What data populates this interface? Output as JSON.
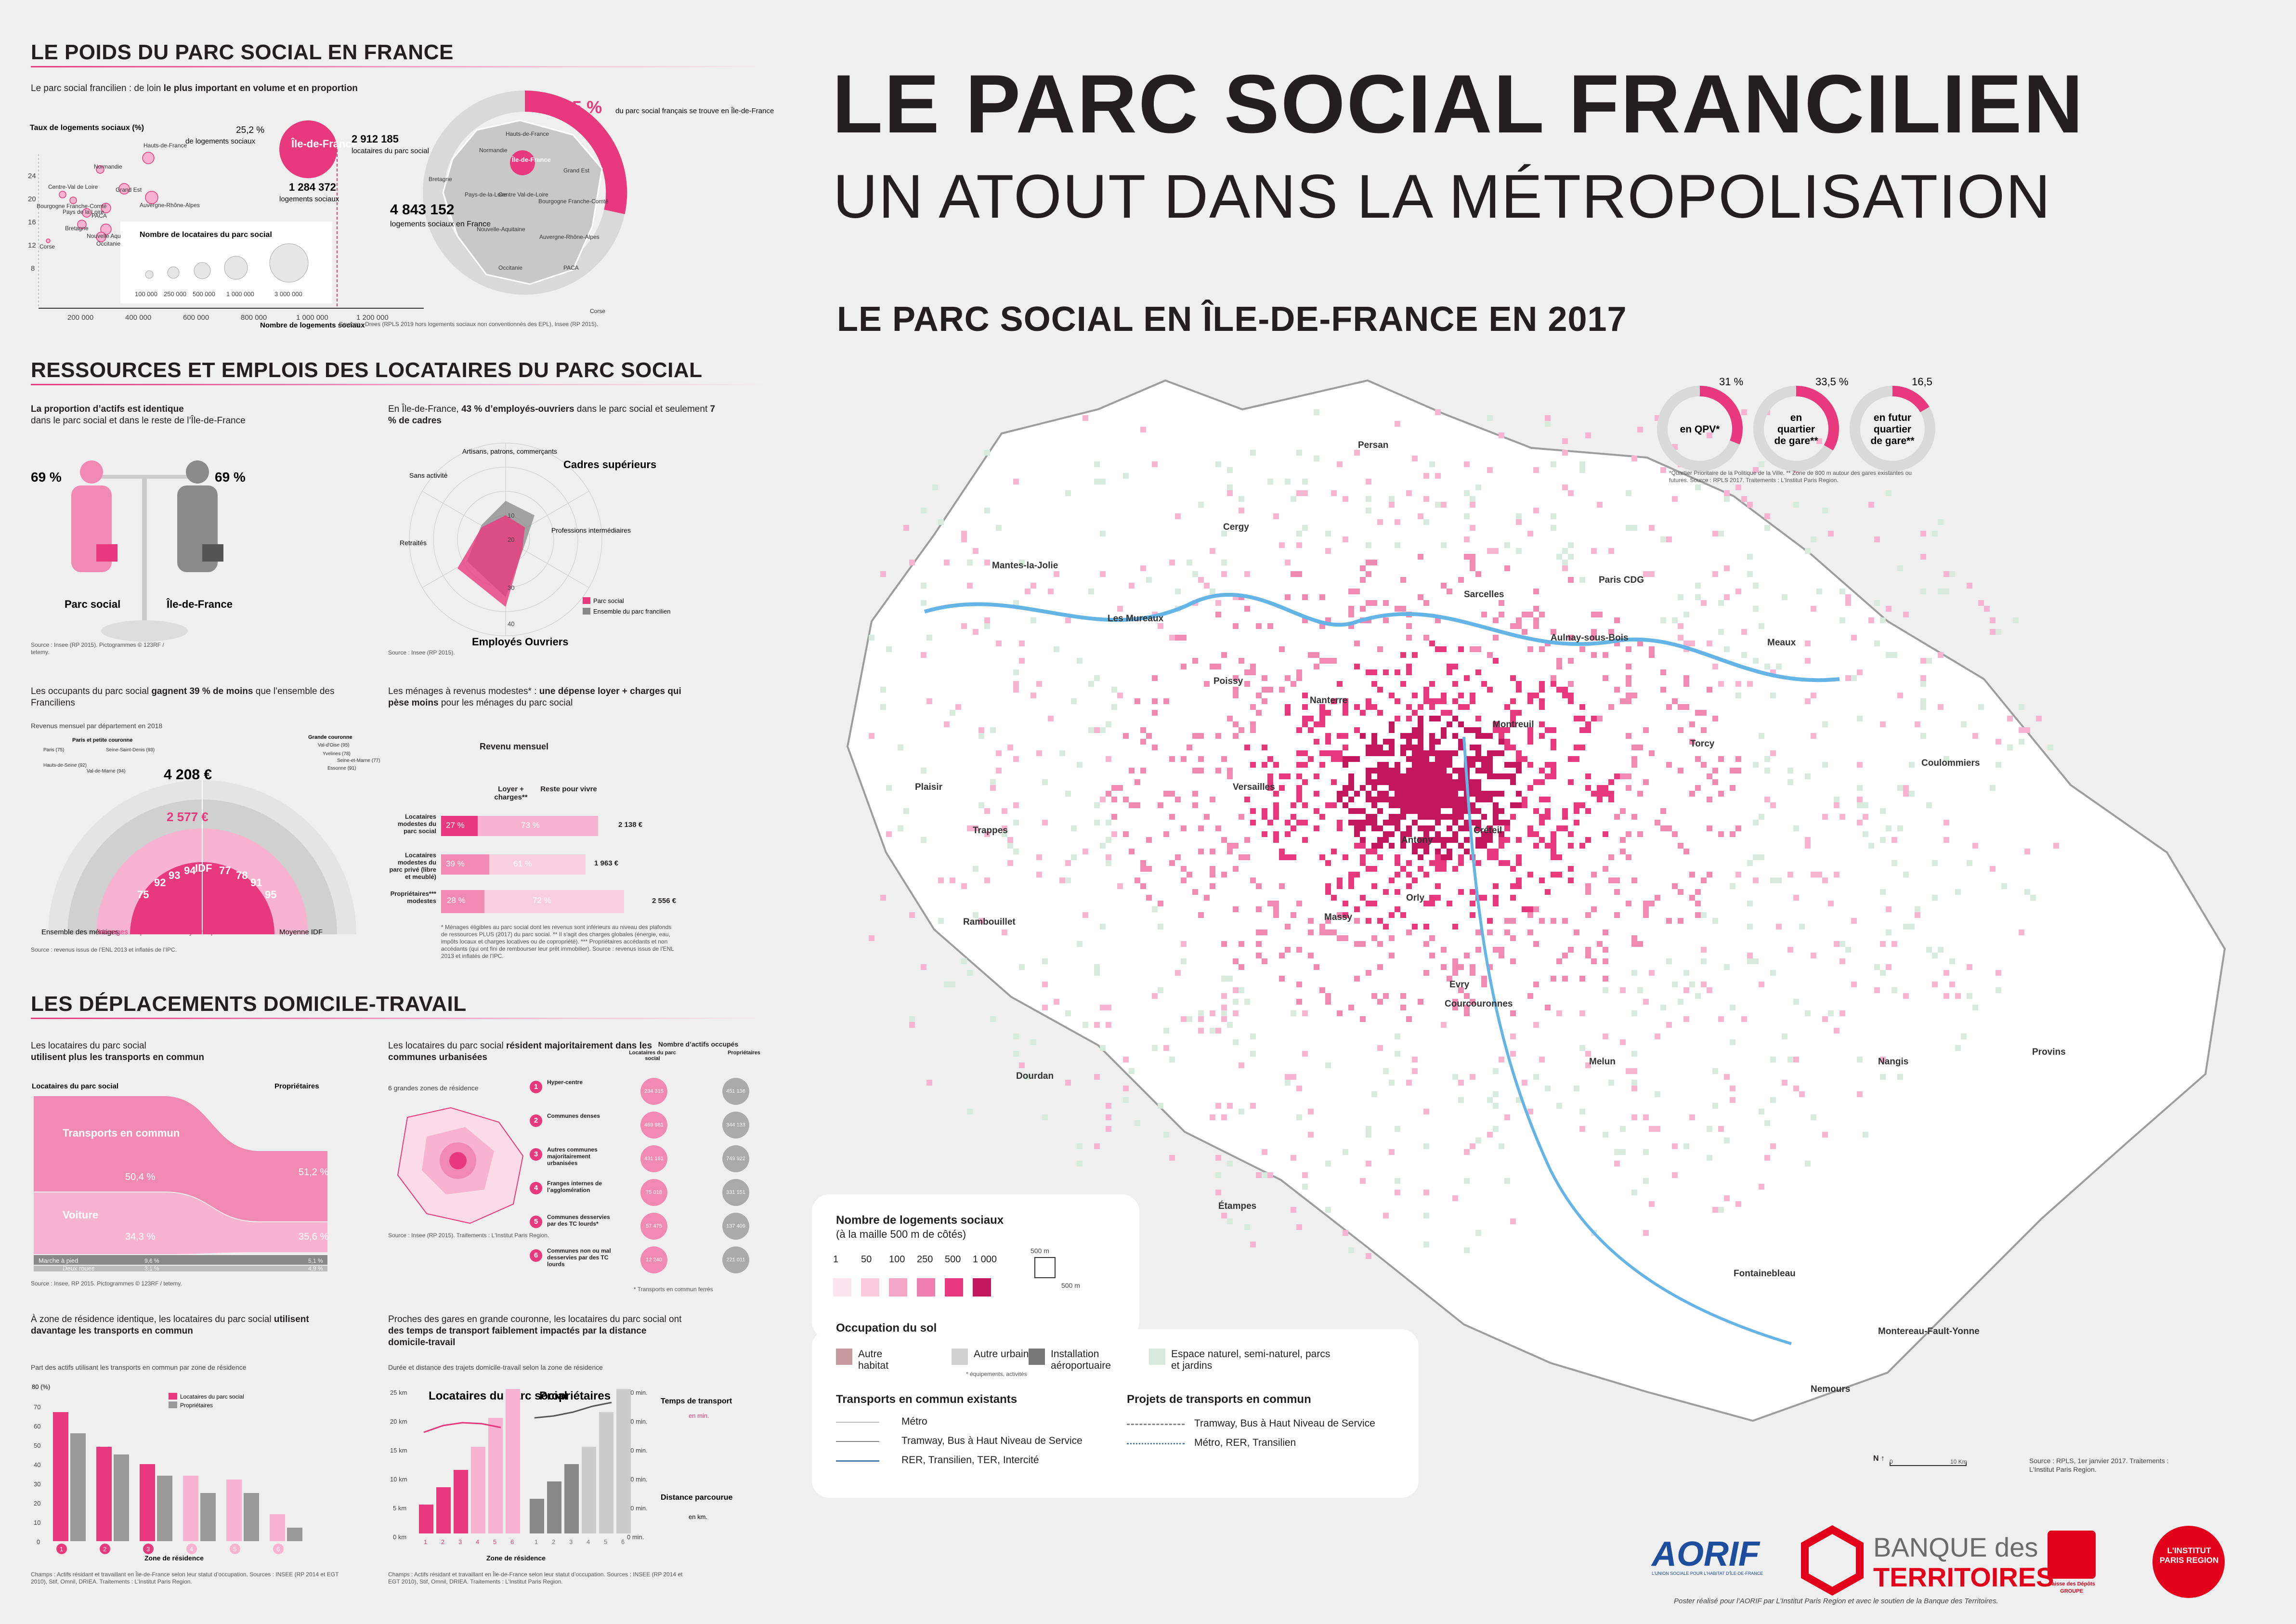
{
  "header": {
    "title": "LE PARC SOCIAL FRANCILIEN",
    "subtitle": "UN ATOUT DANS LA MÉTROPOLISATION",
    "map_title": "LE PARC SOCIAL EN ÎLE-DE-FRANCE EN 2017"
  },
  "section1": {
    "title": "LE POIDS DU PARC SOCIAL EN FRANCE",
    "intro_pre": "Le parc social francilien : de loin ",
    "intro_bold": "le plus important en volume et en proportion",
    "ylabel": "Taux de logements sociaux (%)",
    "xlabel": "Nombre de logements sociaux",
    "yticks": [
      "24",
      "20",
      "16",
      "12",
      "8"
    ],
    "xticks": [
      "200 000",
      "400 000",
      "600 000",
      "800 000",
      "1 000 000",
      "1 200 000"
    ],
    "pct_idf": "25,2 %",
    "pct_idf_label": "de logements sociaux",
    "idf_badge": "Île-de-France",
    "count_idf": "2 912 185",
    "count_idf_label": "locataires du parc social",
    "count_logements": "1 284 372",
    "count_logements_label": "logements sociaux",
    "bubble_legend_title": "Nombre de locataires du parc social",
    "bubble_legend_ticks": [
      "100 000",
      "250 000",
      "500 000",
      "1 000 000",
      "3 000 000"
    ],
    "regions": [
      "Hauts-de-France",
      "Normandie",
      "Grand Est",
      "Centre-Val de Loire",
      "Bourgogne Franche-Comté",
      "Auvergne-Rhône-Alpes",
      "Pays de la Loire",
      "PACA",
      "Bretagne",
      "Nouvelle Aquitaine",
      "Occitanie",
      "Corse"
    ],
    "map_pct": "26,5 %",
    "map_pct_label": "du parc social français se trouve en Île-de-France",
    "map_total": "4 843 152",
    "map_total_label": "logements sociaux en France",
    "map_regions": [
      "Hauts-de-France",
      "Normandie",
      "Bretagne",
      "Pays-de-la-Loire",
      "Centre Val-de-Loire",
      "Grand Est",
      "Bourgogne Franche-Comté",
      "Nouvelle-Aquitaine",
      "Auvergne-Rhône-Alpes",
      "Occitanie",
      "PACA",
      "Corse",
      "Île-de-France"
    ],
    "source": "Sources : Drees (RPLS 2019 hors logements sociaux non conventionnés des EPL), Insee (RP 2015)."
  },
  "section2": {
    "title": "RESSOURCES ET EMPLOIS DES LOCATAIRES DU PARC SOCIAL",
    "actifs_bold": "La proportion d’actifs est identique",
    "actifs_text": "dans le parc social et dans le reste de l’Île-de-France",
    "pct_left": "69 %",
    "pct_right": "69 %",
    "label_left": "Parc social",
    "label_right": "Île-de-France",
    "source1": "Source : Insee (RP 2015). Pictogrammes © 123RF / tetemy.",
    "csp_pre": "En Île-de-France, ",
    "csp_bold1": "43 % d’employés-ouvriers",
    "csp_mid": " dans le parc social et seulement ",
    "csp_bold2": "7 % de cadres",
    "radar_labels": [
      "Artisans, patrons, commerçants",
      "Cadres supérieurs",
      "Professions intermédiaires",
      "Employés Ouvriers",
      "Retraités",
      "Sans activité"
    ],
    "radar_ticks": [
      "10",
      "20",
      "30",
      "40"
    ],
    "radar_legend": [
      "Parc social",
      "Ensemble du parc francilien"
    ],
    "source2": "Source : Insee (RP 2015).",
    "revenu_pre": "Les occupants du parc social ",
    "revenu_bold": "gagnent 39 % de moins",
    "revenu_post": " que l’ensemble des Franciliens",
    "revenu_sub": "Revenus mensuel par département en 2018",
    "revenu_max": "4 208 €",
    "revenu_mid": "2 577 €",
    "paris_label": "Paris et petite couronne",
    "gc_label": "Grande couronne",
    "dept_labels": [
      "Paris (75)",
      "Seine-Saint-Denis (93)",
      "Hauts-de-Seine (92)",
      "Val-de-Marne (94)",
      "Val-d'Oise (95)",
      "Yvelines (78)",
      "Seine-et-Marne (77)",
      "Essonne (91)"
    ],
    "fan_codes": [
      "75",
      "92",
      "93",
      "94",
      "IDF",
      "77",
      "78",
      "91",
      "95"
    ],
    "fan_legend": [
      "Ensemble des ménages",
      "Ménages du parc social",
      "Moyenne parc social IDF",
      "Moyenne IDF"
    ],
    "source3": "Source : revenus issus de l’ENL 2013 et inflatés de l’IPC.",
    "menages_pre": "Les ménages à revenus modestes* : ",
    "menages_bold": "une dépense loyer + charges qui pèse moins",
    "menages_post": " pour les ménages du parc social",
    "revenu_mensuel": "Revenu mensuel",
    "col_loyer": "Loyer + charges**",
    "col_reste": "Reste pour vivre",
    "rows": [
      {
        "label": "Locataires modestes du parc social",
        "loyer": "27 %",
        "reste": "73 %",
        "total": "2 138 €"
      },
      {
        "label": "Locataires modestes du parc privé (libre et meublé)",
        "loyer": "39 %",
        "reste": "61 %",
        "total": "1 963 €"
      },
      {
        "label": "Propriétaires*** modestes",
        "loyer": "28 %",
        "reste": "72 %",
        "total": "2 556 €"
      }
    ],
    "notes": "* Ménages éligibles au parc social dont les revenus sont inférieurs au niveau des plafonds de ressources PLUS (2017) du parc social. ** Il s'agit des charges globales (énergie, eau, impôts locaux et charges locatives ou de copropriété). *** Propriétaires accédants et non accédants (qui ont fini de rembourser leur prêt immobilier). Source : revenus issus de l'ENL 2013 et inflatés de l'IPC."
  },
  "section3": {
    "title": "LES DÉPLACEMENTS DOMICILE-TRAVAIL",
    "tc_text": "Les locataires du parc social",
    "tc_bold": "utilisent plus les transports en commun",
    "col_left": "Locataires du parc social",
    "col_right": "Propriétaires",
    "mode_tc": "Transports en commun",
    "mode_voiture": "Voiture",
    "mode_marche": "Marche à pied",
    "mode_deux": "Deux roues",
    "vals_left": [
      "50,4 %",
      "34,3 %",
      "9,6 %",
      "3,1 %"
    ],
    "vals_right": [
      "51,2 %",
      "35,6 %",
      "5,1 %",
      "4,9 %"
    ],
    "source1": "Source : Insee, RP 2015. Pictogrammes © 123RF / tetemy.",
    "zones_pre": "Les locataires du parc social ",
    "zones_bold": "résident majoritairement dans les communes urbanisées",
    "zones_sub": "6 grandes zones de résidence",
    "zones_col_title": "Nombre d’actifs occupés",
    "zones_col_left": "Locataires du parc social",
    "zones_col_right": "Propriétaires",
    "zones": [
      {
        "n": "1",
        "label": "Hyper-centre",
        "a": "234 315",
        "b": "451 136"
      },
      {
        "n": "2",
        "label": "Communes denses",
        "a": "469 981",
        "b": "344 133"
      },
      {
        "n": "3",
        "label": "Autres communes majoritairement urbanisées",
        "a": "431 161",
        "b": "749 922"
      },
      {
        "n": "4",
        "label": "Franges internes de l’agglomération",
        "a": "75 018",
        "b": "331 151"
      },
      {
        "n": "5",
        "label": "Communes desservies par des TC lourds*",
        "a": "57 475",
        "b": "137 409"
      },
      {
        "n": "6",
        "label": "Communes non ou mal desservies par des TC lourds",
        "a": "12 240",
        "b": "221 011"
      }
    ],
    "zones_note": "* Transports en commun ferrés",
    "source2": "Source : Insee (RP 2015). Traitements : L'Institut Paris Region.",
    "bar_pre": "À zone de résidence identique, les locataires du parc social ",
    "bar_bold": "utilisent davantage les transports en commun",
    "bar_sub": "Part des actifs utilisant les transports en commun par zone de résidence",
    "bar_ylabel": "80 (%)",
    "bar_yticks": [
      "70",
      "60",
      "50",
      "40",
      "30",
      "20",
      "10",
      "0"
    ],
    "bar_legend": [
      "Locataires du parc social",
      "Propriétaires"
    ],
    "bar_xlabel": "Zone de résidence",
    "source3": "Champs : Actifs résidant et travaillant en Île-de-France selon leur statut d’occupation. Sources : INSEE (RP 2014 et EGT 2010), Stif, Omnil, DRIEA. Traitements : L’Institut Paris Region.",
    "time_pre": "Proches des gares en grande couronne, les locataires du parc social ont ",
    "time_bold": "des temps de transport faiblement impactés par la distance domicile-travail",
    "time_sub": "Durée et distance des trajets domicile-travail selon la zone de résidence",
    "time_left_title": "Locataires du parc social",
    "time_right_title": "Propriétaires",
    "time_label": "Temps de transport",
    "time_unit": "en min.",
    "dist_label": "Distance parcourue",
    "dist_unit": "en km.",
    "km_ticks": [
      "25 km",
      "20 km",
      "15 km",
      "10 km",
      "5 km",
      "0 km"
    ],
    "min_ticks": [
      "50 min.",
      "40 min.",
      "30 min.",
      "20 min.",
      "10 min.",
      "0 min."
    ],
    "source4": "Champs : Actifs résidant et travaillant en Île-de-France selon leur statut d’occupation. Sources : INSEE (RP 2014 et EGT 2010), Stif, Omnil, DRIEA. Traitements : L’Institut Paris Region."
  },
  "chart_data": [
    {
      "type": "bar",
      "title": "À zone de résidence identique, les locataires du parc social utilisent davantage les transports en commun",
      "xlabel": "Zone de résidence",
      "ylabel": "(%)",
      "categories": [
        "1",
        "2",
        "3",
        "4",
        "5",
        "6"
      ],
      "ylim": [
        0,
        80
      ],
      "series": [
        {
          "name": "Locataires du parc social",
          "values": [
            67,
            49,
            40,
            34,
            32,
            14
          ]
        },
        {
          "name": "Propriétaires",
          "values": [
            56,
            45,
            34,
            25,
            25,
            7
          ]
        }
      ]
    },
    {
      "type": "bar",
      "title": "Durée et distance des trajets domicile-travail selon la zone de résidence",
      "xlabel": "Zone de résidence",
      "categories": [
        "1",
        "2",
        "3",
        "4",
        "5",
        "6"
      ],
      "series": [
        {
          "name": "Locataires du parc social",
          "values": [
            5,
            8,
            11,
            15,
            20,
            25
          ]
        },
        {
          "name": "Propriétaires",
          "values": [
            6,
            9,
            12,
            15,
            21,
            25
          ]
        }
      ]
    }
  ],
  "map": {
    "donuts": [
      {
        "pct": "31 %",
        "label": "en QPV*",
        "value": 31
      },
      {
        "pct": "33,5 %",
        "label": "en quartier de gare**",
        "value": 33.5
      },
      {
        "pct": "16,5",
        "label": "en futur quartier de gare**",
        "value": 16.5
      }
    ],
    "donut_notes": "*Quartier Prioritaire de la Politique de la Ville. ** Zone de 800 m autour des gares existantes ou futures. Source : RPLS 2017. Traitements : L'Institut Paris Region.",
    "places": [
      "Persan",
      "Cergy",
      "Mantes-la-Jolie",
      "Les Mureaux",
      "Poissy",
      "Sarcelles",
      "Paris CDG",
      "Aulnay-sous-Bois",
      "Nanterre",
      "Montreuil",
      "Torcy",
      "Meaux",
      "Coulommiers",
      "Plaisir",
      "Trappes",
      "Versailles",
      "Antony",
      "Orly",
      "Créteil",
      "Massy",
      "Rambouillet",
      "Evry",
      "Courcouronnes",
      "Melun",
      "Dourdan",
      "Étampes",
      "Nangis",
      "Provins",
      "Fontainebleau",
      "Montereau-Fault-Yonne",
      "Nemours"
    ],
    "source": "Source : RPLS, 1er janvier 2017. Traitements : L'Institut Paris Region.",
    "scale": "10 Km",
    "scale_zero": "0"
  },
  "legend": {
    "title": "Nombre de logements sociaux",
    "subtitle": "(à la maille 500 m de côtés)",
    "classes": [
      "1",
      "50",
      "100",
      "250",
      "500",
      "1 000"
    ],
    "cell": "500 m",
    "occ_title": "Occupation du sol",
    "occ_items": [
      "Autre habitat",
      "Autre urbain*",
      "Installation aéroportuaire",
      "Espace naturel, semi-naturel, parcs et jardins"
    ],
    "occ_note": "* équipements, activités",
    "tc_title": "Transports en commun existants",
    "tc_items": [
      "Métro",
      "Tramway, Bus à Haut Niveau de Service",
      "RER, Transilien, TER, Intercité"
    ],
    "proj_title": "Projets de transports en commun",
    "proj_items": [
      "Tramway, Bus à Haut Niveau de Service",
      "Métro, RER, Transilien"
    ]
  },
  "footer": {
    "aorif": "AORIF",
    "aorif_sub": "L'UNION SOCIALE POUR L'HABITAT D'ÎLE-DE-FRANCE",
    "bdt1": "BANQUE des",
    "bdt2": "TERRITOIRES",
    "cdc": "Caisse des Dépôts GROUPE",
    "ipr": "L'INSTITUT PARIS REGION",
    "credit": "Poster réalisé pour l’AORIF par L’Institut Paris Region et avec le soutien de la Banque des Territoires."
  },
  "colors": {
    "accent": "#e8397d",
    "accent_light": "#f7b3cf",
    "grey": "#9d9d9d",
    "background": "#efefef"
  }
}
